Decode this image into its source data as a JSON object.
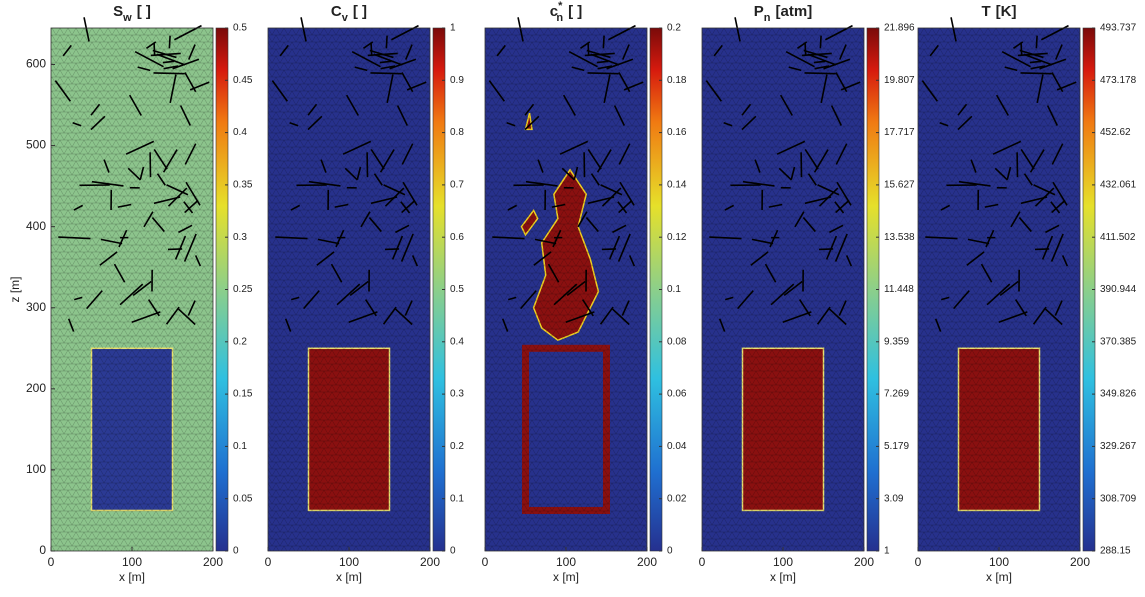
{
  "chart_data": [
    {
      "type": "field",
      "title": {
        "base": "S",
        "sub": "w",
        "unit": "[ ]"
      },
      "xlabel": "x [m]",
      "ylabel": "z [m]",
      "xlim": [
        0,
        200
      ],
      "xticks": [
        0,
        100,
        200
      ],
      "ylim": [
        0,
        645
      ],
      "yticks": [
        0,
        100,
        200,
        300,
        400,
        500,
        600
      ],
      "colormap": "jet",
      "clim": [
        0,
        0.5
      ],
      "cticks": [
        0,
        0.05,
        0.1,
        0.15,
        0.2,
        0.25,
        0.3,
        0.35,
        0.4,
        0.45,
        0.5
      ],
      "background": "#8cc48c",
      "zone": {
        "x": [
          50,
          150
        ],
        "z": [
          50,
          250
        ],
        "color": "#2b3a94",
        "style": "fill"
      }
    },
    {
      "type": "field",
      "title": {
        "base": "C",
        "sub": "v",
        "unit": "[ ]"
      },
      "xlabel": "x [m]",
      "xlim": [
        0,
        200
      ],
      "xticks": [
        0,
        100,
        200
      ],
      "ylim": [
        0,
        645
      ],
      "colormap": "jet",
      "clim": [
        0,
        1
      ],
      "cticks": [
        0,
        0.1,
        0.2,
        0.3,
        0.4,
        0.5,
        0.6,
        0.7,
        0.8,
        0.9,
        1
      ],
      "background": "#27318c",
      "zone": {
        "x": [
          50,
          150
        ],
        "z": [
          50,
          250
        ],
        "color": "#8a1010",
        "style": "fill"
      }
    },
    {
      "type": "field",
      "title": {
        "base": "c",
        "sub": "n",
        "sup": "*",
        "unit": "[ ]"
      },
      "xlabel": "x [m]",
      "xlim": [
        0,
        200
      ],
      "xticks": [
        0,
        100,
        200
      ],
      "ylim": [
        0,
        645
      ],
      "colormap": "jet",
      "clim": [
        0,
        0.2
      ],
      "cticks": [
        0,
        0.02,
        0.04,
        0.06,
        0.08,
        0.1,
        0.12,
        0.14,
        0.16,
        0.18,
        0.2
      ],
      "background": "#27318c",
      "zone": {
        "x": [
          50,
          150
        ],
        "z": [
          50,
          250
        ],
        "color": "#8a1010",
        "style": "ring"
      },
      "plume": true
    },
    {
      "type": "field",
      "title": {
        "base": "P",
        "sub": "n",
        "unit": "[atm]"
      },
      "xlabel": "x [m]",
      "xlim": [
        0,
        200
      ],
      "xticks": [
        0,
        100,
        200
      ],
      "ylim": [
        0,
        645
      ],
      "colormap": "jet",
      "clim": [
        1,
        21.896
      ],
      "cticks": [
        1,
        3.09,
        5.179,
        7.269,
        9.359,
        11.448,
        13.538,
        15.627,
        17.717,
        19.807,
        21.896
      ],
      "background": "#27318c",
      "zone": {
        "x": [
          50,
          150
        ],
        "z": [
          50,
          250
        ],
        "color": "#8a1010",
        "style": "fill"
      }
    },
    {
      "type": "field",
      "title": {
        "base": "T",
        "unit": "[K]"
      },
      "xlabel": "x [m]",
      "xlim": [
        0,
        200
      ],
      "xticks": [
        0,
        100,
        200
      ],
      "ylim": [
        0,
        645
      ],
      "colormap": "jet",
      "clim": [
        288.15,
        493.737
      ],
      "cticks": [
        288.15,
        308.709,
        329.267,
        349.826,
        370.385,
        390.944,
        411.502,
        432.061,
        452.62,
        473.178,
        493.737
      ],
      "background": "#27318c",
      "zone": {
        "x": [
          50,
          150
        ],
        "z": [
          50,
          250
        ],
        "color": "#8a1010",
        "style": "fill"
      }
    }
  ]
}
